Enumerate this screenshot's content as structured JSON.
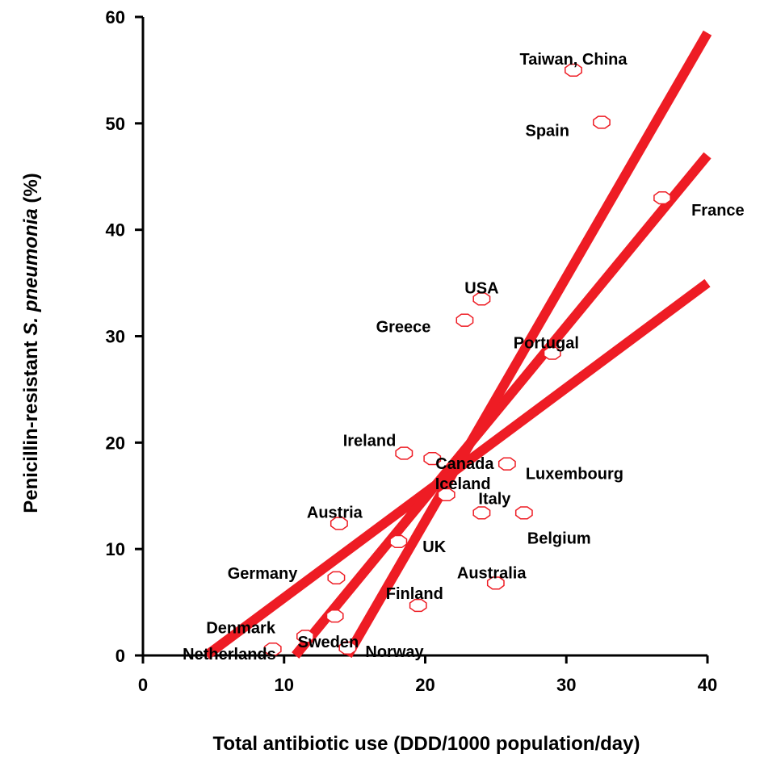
{
  "chart_data": {
    "type": "scatter",
    "xlabel": "Total antibiotic use (DDD/1000 population/day)",
    "ylabel": {
      "prefix": "Penicillin-resistant ",
      "italic": "S. pneumonia",
      "suffix": " (%)"
    },
    "xlim": [
      0,
      40
    ],
    "ylim": [
      0,
      60
    ],
    "xticks": [
      "0",
      "10",
      "20",
      "30",
      "40"
    ],
    "yticks": [
      "0",
      "10",
      "20",
      "30",
      "40",
      "50",
      "60"
    ],
    "grid": false,
    "legend": "none",
    "colors": {
      "line": "#ee1c24",
      "marker": "#ee1c24",
      "text": "#000000"
    },
    "points": [
      {
        "label": "Taiwan, China",
        "x": 30.5,
        "y": 55.0
      },
      {
        "label": "Spain",
        "x": 32.5,
        "y": 50.1
      },
      {
        "label": "France",
        "x": 36.8,
        "y": 43.0
      },
      {
        "label": "USA",
        "x": 24.0,
        "y": 33.5
      },
      {
        "label": "Greece",
        "x": 22.8,
        "y": 31.5
      },
      {
        "label": "Portugal",
        "x": 29.0,
        "y": 28.4
      },
      {
        "label": "Ireland",
        "x": 18.5,
        "y": 19.0
      },
      {
        "label": "Canada",
        "x": 20.5,
        "y": 18.5
      },
      {
        "label": "Luxembourg",
        "x": 25.8,
        "y": 18.0
      },
      {
        "label": "Iceland",
        "x": 21.5,
        "y": 15.1
      },
      {
        "label": "Italy",
        "x": 24.0,
        "y": 13.4
      },
      {
        "label": "Belgium",
        "x": 27.0,
        "y": 13.4
      },
      {
        "label": "Austria",
        "x": 13.9,
        "y": 12.4
      },
      {
        "label": "UK",
        "x": 18.1,
        "y": 10.7
      },
      {
        "label": "Germany",
        "x": 13.7,
        "y": 7.3
      },
      {
        "label": "Australia",
        "x": 25.0,
        "y": 6.8
      },
      {
        "label": "Finland",
        "x": 19.5,
        "y": 4.7
      },
      {
        "label": "Sweden",
        "x": 13.6,
        "y": 3.7
      },
      {
        "label": "Denmark",
        "x": 11.5,
        "y": 1.8
      },
      {
        "label": "Netherlands",
        "x": 9.2,
        "y": 0.6
      },
      {
        "label": "Norway",
        "x": 14.5,
        "y": 0.7
      }
    ],
    "lines": [
      {
        "x": [
          4.5,
          40.0
        ],
        "y": [
          0.0,
          35.0
        ]
      },
      {
        "x": [
          10.8,
          40.0
        ],
        "y": [
          0.0,
          47.0
        ]
      },
      {
        "x": [
          14.5,
          40.0
        ],
        "y": [
          0.0,
          58.5
        ]
      }
    ]
  }
}
